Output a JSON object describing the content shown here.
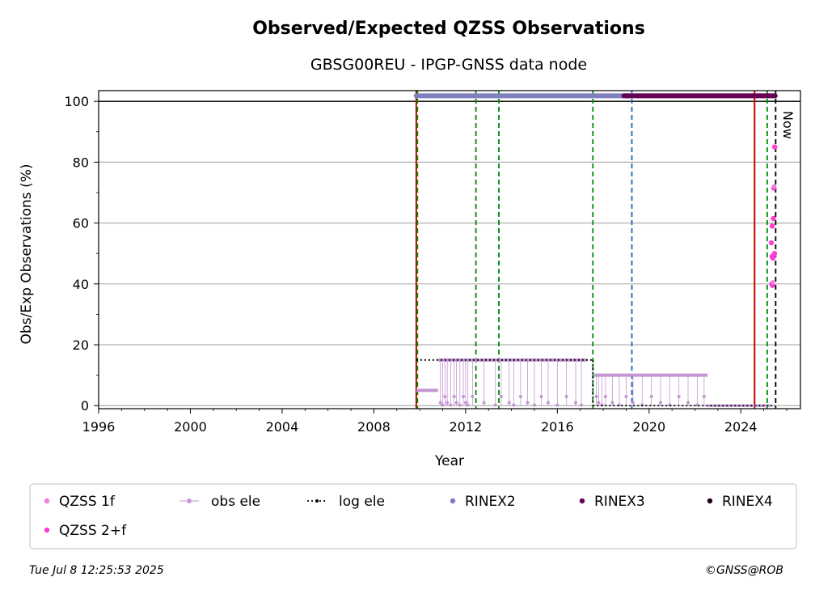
{
  "chart_data": {
    "type": "scatter",
    "title": "Observed/Expected QZSS Observations",
    "subtitle": "GBSG00REU - IPGP-GNSS data node",
    "xlabel": "Year",
    "ylabel": "Obs/Exp Observations (%)",
    "xlim": [
      1996,
      2026.6
    ],
    "ylim": [
      -1,
      103.5
    ],
    "x_ticks": [
      1996,
      2000,
      2004,
      2008,
      2012,
      2016,
      2020,
      2024
    ],
    "y_ticks": [
      0,
      20,
      40,
      60,
      80,
      100
    ],
    "grid": "y",
    "now_label": "Now",
    "now_x": 2025.52,
    "legend": {
      "placement": "bottom",
      "entries": [
        {
          "label": "QZSS 1f",
          "color": "#f07ee0"
        },
        {
          "label": "obs ele",
          "color": "#c495d2"
        },
        {
          "label": "log ele",
          "color": "#000000"
        },
        {
          "label": "RINEX2",
          "color": "#7b7bbf"
        },
        {
          "label": "RINEX3",
          "color": "#660055"
        },
        {
          "label": "RINEX4",
          "color": "#220022"
        },
        {
          "label": "QZSS 2+f",
          "color": "#ff3dd4"
        }
      ]
    },
    "vertical_lines": [
      {
        "x": 2009.85,
        "color": "#cc0000",
        "style": "solid"
      },
      {
        "x": 2009.9,
        "color": "#008800",
        "style": "dashed"
      },
      {
        "x": 2012.45,
        "color": "#008800",
        "style": "dashed"
      },
      {
        "x": 2013.45,
        "color": "#008800",
        "style": "dashed"
      },
      {
        "x": 2017.55,
        "color": "#008800",
        "style": "dashed"
      },
      {
        "x": 2019.25,
        "color": "#1f5fbf",
        "style": "dashed"
      },
      {
        "x": 2024.6,
        "color": "#cc0000",
        "style": "solid"
      },
      {
        "x": 2025.15,
        "color": "#008800",
        "style": "dashed"
      },
      {
        "x": 2025.52,
        "color": "#000000",
        "style": "dashed"
      }
    ],
    "file_bars": [
      {
        "series": "RINEX2",
        "start": 2009.85,
        "end": 2019.1,
        "y": 101.8,
        "color": "#8080c0"
      },
      {
        "series": "RINEX3",
        "start": 2018.9,
        "end": 2025.5,
        "y": 101.8,
        "color": "#660055"
      }
    ],
    "log_ele": [
      {
        "start": 2009.85,
        "end": 2017.55,
        "y": 15
      },
      {
        "start": 2017.55,
        "end": 2025.52,
        "y": 0
      }
    ],
    "obs_ele": [
      {
        "start": 2009.85,
        "end": 2010.8,
        "y": 5
      },
      {
        "start": 2010.8,
        "end": 2017.3,
        "y": 15
      },
      {
        "start": 2017.6,
        "end": 2022.55,
        "y": 10
      },
      {
        "start": 2022.55,
        "end": 2025.3,
        "y": 0
      }
    ],
    "obs_ele_drops": [
      2010.9,
      2011.0,
      2011.1,
      2011.2,
      2011.35,
      2011.5,
      2011.6,
      2011.75,
      2011.9,
      2012.0,
      2012.1,
      2012.3,
      2012.8,
      2013.3,
      2013.55,
      2013.9,
      2014.1,
      2014.4,
      2014.7,
      2015.0,
      2015.3,
      2015.6,
      2016.0,
      2016.4,
      2016.8,
      2017.05,
      2017.7,
      2017.8,
      2017.95,
      2018.1,
      2018.4,
      2018.7,
      2019.0,
      2019.3,
      2019.7,
      2020.1,
      2020.5,
      2020.9,
      2021.3,
      2021.7,
      2022.1,
      2022.4
    ],
    "qzss_2f": [
      {
        "x": 2025.35,
        "y": 40
      },
      {
        "x": 2025.38,
        "y": 39.5
      },
      {
        "x": 2025.36,
        "y": 49
      },
      {
        "x": 2025.4,
        "y": 48.5
      },
      {
        "x": 2025.44,
        "y": 49.5
      },
      {
        "x": 2025.47,
        "y": 50
      },
      {
        "x": 2025.33,
        "y": 53.5
      },
      {
        "x": 2025.37,
        "y": 59
      },
      {
        "x": 2025.42,
        "y": 61.5
      },
      {
        "x": 2025.44,
        "y": 71.5
      },
      {
        "x": 2025.48,
        "y": 85
      }
    ],
    "qzss_1f": [
      {
        "x": 2025.39,
        "y": 40.5
      },
      {
        "x": 2025.45,
        "y": 72
      }
    ]
  },
  "footer": {
    "timestamp": "Tue Jul  8 12:25:53 2025",
    "credit": "©GNSS@ROB"
  }
}
